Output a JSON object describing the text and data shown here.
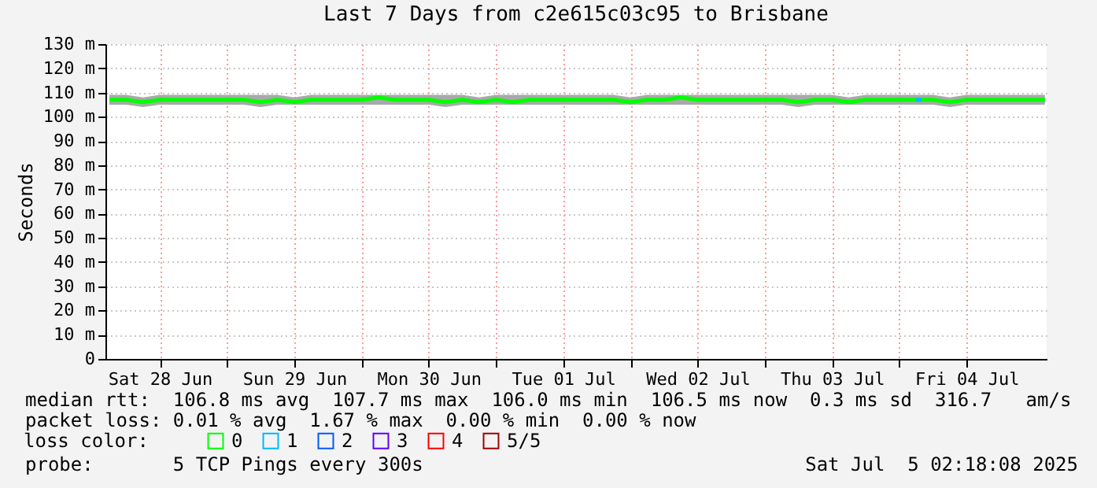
{
  "chart_data": {
    "type": "line",
    "title": "Last 7 Days from c2e615c03c95 to Brisbane",
    "ylabel": "Seconds",
    "legend_title": "loss color:",
    "legend": "bottom",
    "grid": true,
    "xlim": [
      "2025-06-28T02:18",
      "2025-07-05T02:18"
    ],
    "xticks": [
      {
        "value": "2025-06-28T12:00",
        "label": "Sat 28 Jun"
      },
      {
        "value": "2025-06-29T00:00",
        "label": null
      },
      {
        "value": "2025-06-29T12:00",
        "label": "Sun 29 Jun"
      },
      {
        "value": "2025-06-30T00:00",
        "label": null
      },
      {
        "value": "2025-06-30T12:00",
        "label": "Mon 30 Jun"
      },
      {
        "value": "2025-07-01T00:00",
        "label": null
      },
      {
        "value": "2025-07-01T12:00",
        "label": "Tue 01 Jul"
      },
      {
        "value": "2025-07-02T00:00",
        "label": null
      },
      {
        "value": "2025-07-02T12:00",
        "label": "Wed 02 Jul"
      },
      {
        "value": "2025-07-03T00:00",
        "label": null
      },
      {
        "value": "2025-07-03T12:00",
        "label": "Thu 03 Jul"
      },
      {
        "value": "2025-07-04T00:00",
        "label": null
      },
      {
        "value": "2025-07-04T12:00",
        "label": "Fri 04 Jul"
      }
    ],
    "ylim": [
      0,
      130
    ],
    "yticks": [
      0,
      {
        "value": 10,
        "label": "10 m"
      },
      {
        "value": 20,
        "label": "20 m"
      },
      {
        "value": 30,
        "label": "30 m"
      },
      {
        "value": 40,
        "label": "40 m"
      },
      {
        "value": 50,
        "label": "50 m"
      },
      {
        "value": 60,
        "label": "60 m"
      },
      {
        "value": 70,
        "label": "70 m"
      },
      {
        "value": 80,
        "label": "80 m"
      },
      {
        "value": 90,
        "label": "90 m"
      },
      {
        "value": 100,
        "label": "100 m"
      },
      {
        "value": 110,
        "label": "110 m"
      },
      {
        "value": 120,
        "label": "120 m"
      },
      {
        "value": 130,
        "label": "130 m"
      }
    ],
    "x": [
      "2025-06-28T03:00",
      "2025-06-28T06:00",
      "2025-06-28T09:00",
      "2025-06-28T12:00",
      "2025-06-28T15:00",
      "2025-06-28T18:00",
      "2025-06-28T21:00",
      "2025-06-29T00:00",
      "2025-06-29T03:00",
      "2025-06-29T06:00",
      "2025-06-29T09:00",
      "2025-06-29T12:00",
      "2025-06-29T15:00",
      "2025-06-29T18:00",
      "2025-06-29T21:00",
      "2025-06-30T00:00",
      "2025-06-30T03:00",
      "2025-06-30T06:00",
      "2025-06-30T09:00",
      "2025-06-30T12:00",
      "2025-06-30T15:00",
      "2025-06-30T18:00",
      "2025-06-30T21:00",
      "2025-07-01T00:00",
      "2025-07-01T03:00",
      "2025-07-01T06:00",
      "2025-07-01T09:00",
      "2025-07-01T12:00",
      "2025-07-01T15:00",
      "2025-07-01T18:00",
      "2025-07-01T21:00",
      "2025-07-02T00:00",
      "2025-07-02T03:00",
      "2025-07-02T06:00",
      "2025-07-02T09:00",
      "2025-07-02T12:00",
      "2025-07-02T15:00",
      "2025-07-02T18:00",
      "2025-07-02T21:00",
      "2025-07-03T00:00",
      "2025-07-03T03:00",
      "2025-07-03T06:00",
      "2025-07-03T09:00",
      "2025-07-03T12:00",
      "2025-07-03T15:00",
      "2025-07-03T18:00",
      "2025-07-03T21:00",
      "2025-07-04T00:00",
      "2025-07-04T03:00",
      "2025-07-04T06:00",
      "2025-07-04T09:00",
      "2025-07-04T12:00",
      "2025-07-04T15:00",
      "2025-07-04T18:00",
      "2025-07-04T21:00",
      "2025-07-05T00:00",
      "2025-07-05T02:00"
    ],
    "series": [
      {
        "name": "0",
        "color": "#00ff00",
        "values": [
          107,
          107,
          106,
          107,
          107,
          107,
          107,
          107,
          107,
          106,
          107,
          106,
          107,
          107,
          107,
          107,
          108,
          107,
          107,
          107,
          106,
          107,
          106,
          107,
          106,
          107,
          107,
          107,
          107,
          107,
          107,
          106,
          107,
          107,
          108,
          107,
          107,
          107,
          107,
          107,
          107,
          106,
          107,
          107,
          106,
          107,
          107,
          107,
          107,
          107,
          106,
          107,
          107,
          107,
          107,
          107,
          107
        ],
        "lower": [
          105,
          105,
          104,
          105,
          105,
          105,
          105,
          105,
          105,
          104,
          105,
          105,
          105,
          105,
          105,
          105,
          105,
          105,
          105,
          105,
          104,
          105,
          105,
          105,
          105,
          105,
          105,
          105,
          105,
          105,
          105,
          105,
          105,
          105,
          105,
          105,
          105,
          105,
          105,
          105,
          105,
          104,
          105,
          105,
          105,
          105,
          105,
          105,
          105,
          105,
          104,
          105,
          105,
          105,
          105,
          105,
          105
        ],
        "upper": [
          109,
          109,
          108,
          109,
          109,
          109,
          109,
          109,
          109,
          109,
          109,
          108,
          109,
          109,
          109,
          109,
          109,
          109,
          109,
          109,
          109,
          109,
          108,
          109,
          109,
          109,
          109,
          109,
          109,
          109,
          109,
          108,
          109,
          109,
          109,
          109,
          109,
          109,
          109,
          109,
          109,
          109,
          109,
          109,
          108,
          109,
          109,
          109,
          109,
          109,
          108,
          109,
          109,
          109,
          109,
          109,
          109
        ]
      },
      {
        "name": "1",
        "color": "#00b8ff",
        "x": [
          "2025-07-04T03:00",
          "2025-07-04T04:00"
        ],
        "values": [
          107,
          107
        ]
      },
      {
        "name": "2",
        "color": "#0059ff",
        "values": [
          null,
          null,
          null,
          null,
          null,
          null,
          null,
          null,
          null,
          null,
          null,
          null,
          null,
          null,
          null,
          null,
          null,
          null,
          null,
          null,
          null,
          null,
          null,
          null,
          null,
          null,
          null,
          null,
          null,
          null,
          null,
          null,
          null,
          null,
          null,
          null,
          null,
          null,
          null,
          null,
          null,
          null,
          null,
          null,
          null,
          null,
          null,
          null,
          null,
          null,
          null,
          null,
          null,
          null,
          null,
          null,
          null
        ]
      },
      {
        "name": "3",
        "color": "#5e00ff",
        "values": [
          null,
          null,
          null,
          null,
          null,
          null,
          null,
          null,
          null,
          null,
          null,
          null,
          null,
          null,
          null,
          null,
          null,
          null,
          null,
          null,
          null,
          null,
          null,
          null,
          null,
          null,
          null,
          null,
          null,
          null,
          null,
          null,
          null,
          null,
          null,
          null,
          null,
          null,
          null,
          null,
          null,
          null,
          null,
          null,
          null,
          null,
          null,
          null,
          null,
          null,
          null,
          null,
          null,
          null,
          null,
          null,
          null
        ]
      },
      {
        "name": "4",
        "color": "#ff0000",
        "values": [
          null,
          null,
          null,
          null,
          null,
          null,
          null,
          null,
          null,
          null,
          null,
          null,
          null,
          null,
          null,
          null,
          null,
          null,
          null,
          null,
          null,
          null,
          null,
          null,
          null,
          null,
          null,
          null,
          null,
          null,
          null,
          null,
          null,
          null,
          null,
          null,
          null,
          null,
          null,
          null,
          null,
          null,
          null,
          null,
          null,
          null,
          null,
          null,
          null,
          null,
          null,
          null,
          null,
          null,
          null,
          null,
          null
        ]
      },
      {
        "name": "5/5",
        "color": "#a10000",
        "values": [
          null,
          null,
          null,
          null,
          null,
          null,
          null,
          null,
          null,
          null,
          null,
          null,
          null,
          null,
          null,
          null,
          null,
          null,
          null,
          null,
          null,
          null,
          null,
          null,
          null,
          null,
          null,
          null,
          null,
          null,
          null,
          null,
          null,
          null,
          null,
          null,
          null,
          null,
          null,
          null,
          null,
          null,
          null,
          null,
          null,
          null,
          null,
          null,
          null,
          null,
          null,
          null,
          null,
          null,
          null,
          null,
          null
        ]
      }
    ],
    "annotations": [
      "median rtt:  106.8 ms avg  107.7 ms max  106.0 ms min  106.5 ms now  0.3 ms sd  316.7   am/s",
      "packet loss: 0.01 % avg  1.67 % max  0.00 % min  0.00 % now",
      "probe:       5 TCP Pings every 300s",
      "Sat Jul  5 02:18:08 2025"
    ]
  }
}
